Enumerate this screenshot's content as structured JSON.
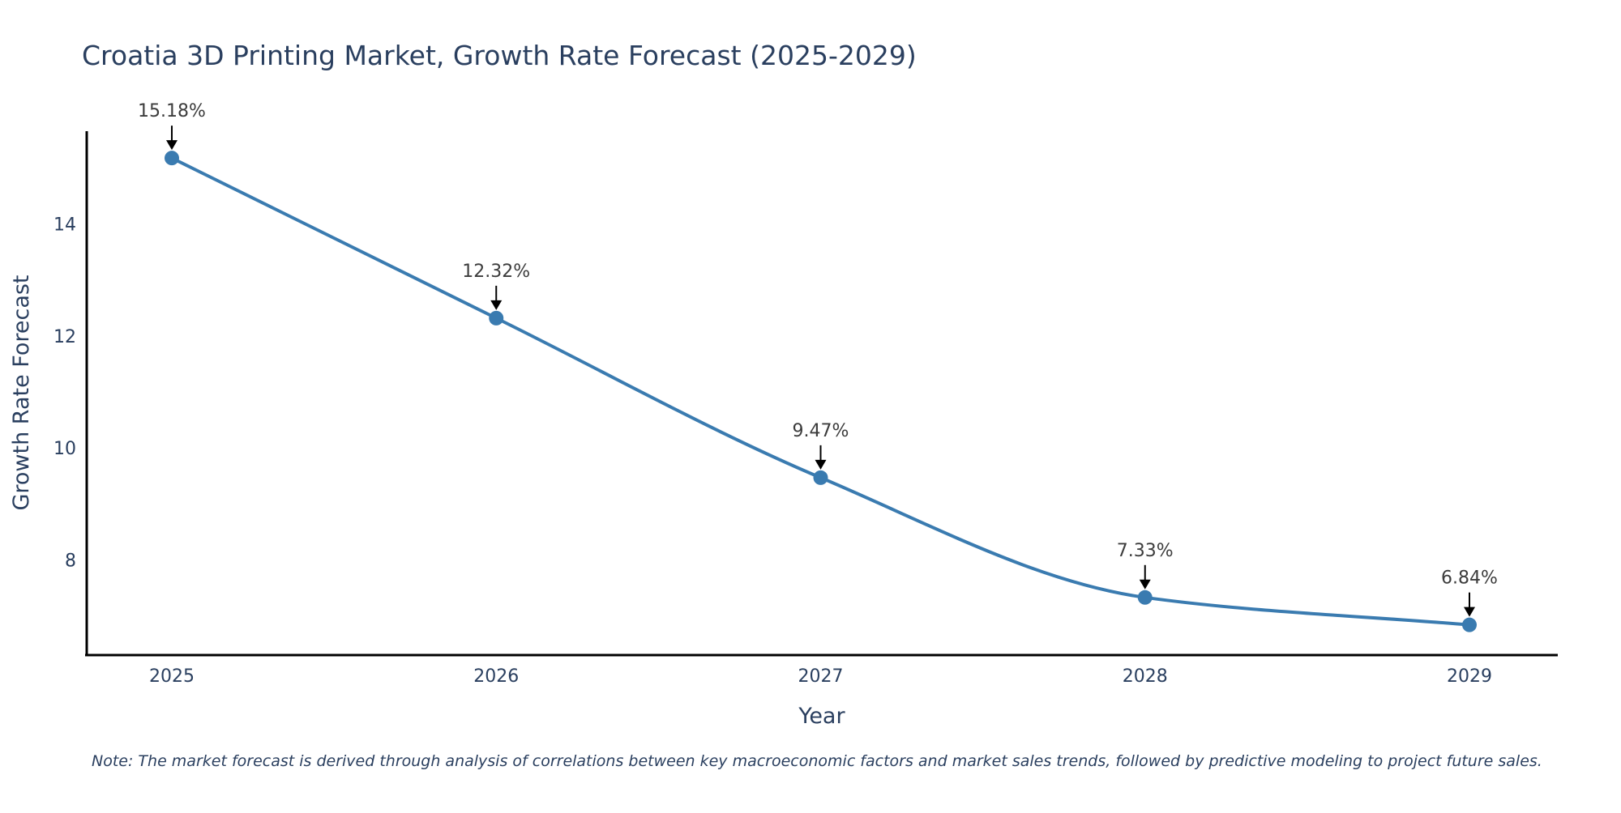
{
  "colors": {
    "line": "#3a7bb0",
    "marker": "#3a7bb0",
    "text": "#2a3f5f",
    "axis": "#000000",
    "annotation_text": "#3c3c3c",
    "arrow": "#000000"
  },
  "chart_data": {
    "type": "line",
    "title": "Croatia 3D Printing Market, Growth Rate Forecast (2025-2029)",
    "xlabel": "Year",
    "ylabel": "Growth Rate Forecast",
    "categories": [
      "2025",
      "2026",
      "2027",
      "2028",
      "2029"
    ],
    "series": [
      {
        "name": "Growth Rate Forecast",
        "values": [
          15.18,
          12.32,
          9.47,
          7.33,
          6.84
        ]
      }
    ],
    "data_labels": [
      "15.18%",
      "12.32%",
      "9.47%",
      "7.33%",
      "6.84%"
    ],
    "y_ticks": [
      "8",
      "10",
      "12",
      "14"
    ],
    "ylim": [
      6.3,
      15.66
    ],
    "grid": false,
    "line_shape": "spline",
    "markers": true,
    "legend": "none"
  },
  "note": "Note: The market forecast is derived through analysis of correlations between key macroeconomic factors and market sales trends, followed by predictive modeling to project future sales."
}
